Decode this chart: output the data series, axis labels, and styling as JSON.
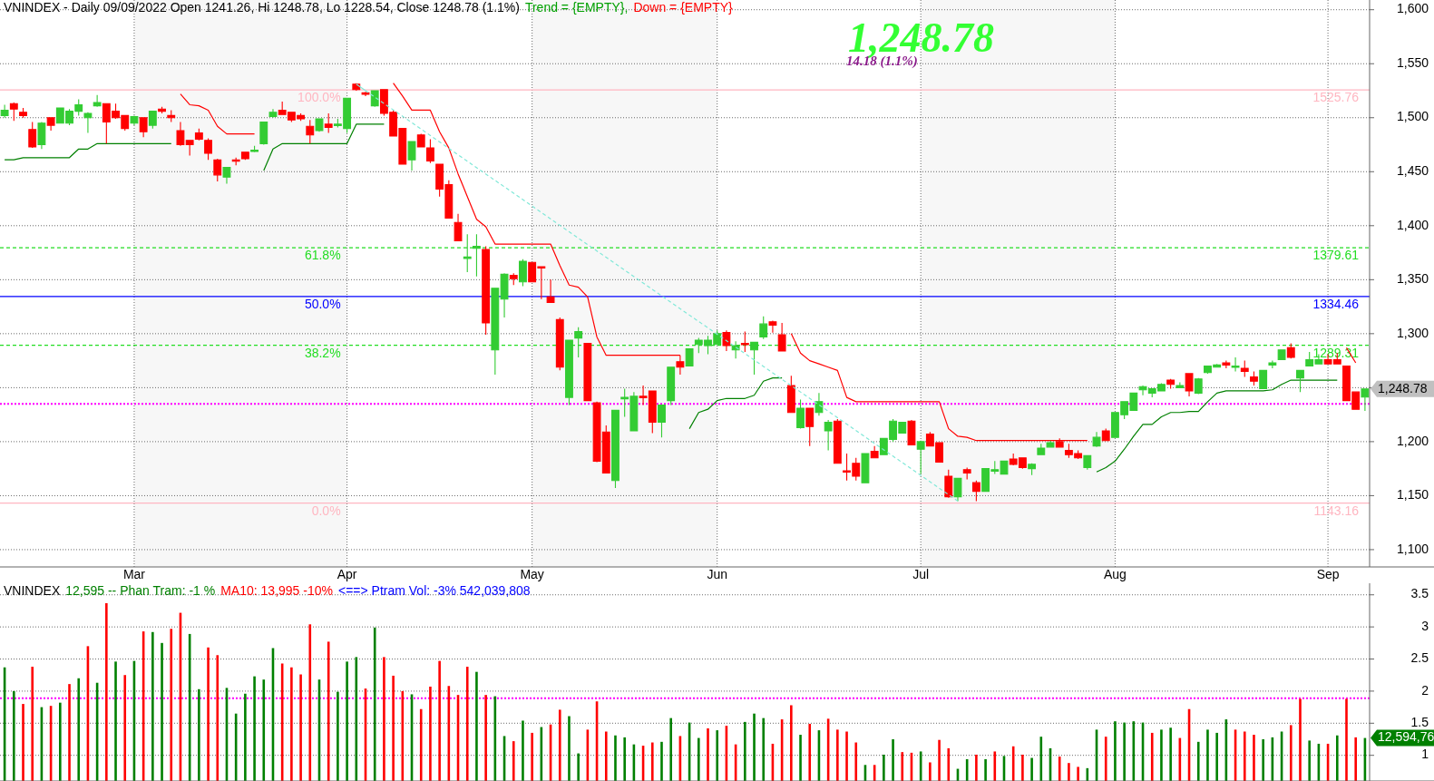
{
  "chart_data": [
    {
      "type": "candlestick",
      "title": "VNINDEX - Daily 09/09/2022 Open 1241.26, Hi 1248.78, Lo 1228.54, Close 1248.78 (1.1%)",
      "categories": [
        null,
        null,
        null,
        null,
        null,
        null,
        null,
        null,
        null,
        null,
        null,
        null,
        null,
        null,
        "Mar",
        null,
        null,
        null,
        null,
        null,
        null,
        null,
        null,
        null,
        null,
        null,
        null,
        null,
        null,
        null,
        null,
        null,
        null,
        null,
        null,
        null,
        null,
        "Apr",
        null,
        null,
        null,
        null,
        null,
        null,
        null,
        null,
        null,
        null,
        null,
        null,
        null,
        null,
        null,
        null,
        null,
        null,
        null,
        "May",
        null,
        null,
        null,
        null,
        null,
        null,
        null,
        null,
        null,
        null,
        null,
        null,
        null,
        null,
        null,
        null,
        null,
        null,
        null,
        "Jun",
        null,
        null,
        null,
        null,
        null,
        null,
        null,
        null,
        null,
        null,
        null,
        null,
        null,
        null,
        null,
        null,
        null,
        null,
        null,
        null,
        null,
        "Jul",
        null,
        null,
        null,
        null,
        null,
        null,
        null,
        null,
        null,
        null,
        null,
        null,
        null,
        null,
        null,
        null,
        null,
        null,
        null,
        null,
        "Aug",
        null,
        null,
        null,
        null,
        null,
        null,
        null,
        null,
        null,
        null,
        null,
        null,
        null,
        null,
        null,
        null,
        null,
        null,
        null,
        null,
        null,
        null,
        "Sep",
        null,
        null,
        null,
        null
      ],
      "ohlc": [
        [
          1502,
          1512,
          1500,
          1507
        ],
        [
          1513,
          1514,
          1497,
          1508
        ],
        [
          1505,
          1509,
          1500,
          1502
        ],
        [
          1489,
          1496,
          1472,
          1473
        ],
        [
          1475,
          1496,
          1471,
          1495
        ],
        [
          1500,
          1500,
          1488,
          1493
        ],
        [
          1495,
          1509,
          1495,
          1509
        ],
        [
          1495,
          1508,
          1493,
          1506
        ],
        [
          1506,
          1517,
          1502,
          1512
        ],
        [
          1500,
          1505,
          1486,
          1504
        ],
        [
          1511,
          1521,
          1510,
          1514
        ],
        [
          1513,
          1513,
          1476,
          1496
        ],
        [
          1506,
          1513,
          1499,
          1500
        ],
        [
          1502,
          1502,
          1488,
          1490
        ],
        [
          1495,
          1502,
          1493,
          1501
        ],
        [
          1500,
          1500,
          1482,
          1487
        ],
        [
          1493,
          1506,
          1490,
          1506
        ],
        [
          1508,
          1510,
          1504,
          1506
        ],
        [
          1502,
          1507,
          1496,
          1500
        ],
        [
          1488,
          1496,
          1474,
          1475
        ],
        [
          1479,
          1479,
          1465,
          1475
        ],
        [
          1486,
          1490,
          1479,
          1480
        ],
        [
          1479,
          1481,
          1461,
          1467
        ],
        [
          1461,
          1462,
          1441,
          1447
        ],
        [
          1445,
          1454,
          1439,
          1454
        ],
        [
          1461,
          1463,
          1456,
          1460
        ],
        [
          1468,
          1468,
          1461,
          1462
        ],
        [
          1469,
          1474,
          1468,
          1470
        ],
        [
          1476,
          1496,
          1475,
          1496
        ],
        [
          1501,
          1508,
          1500,
          1505
        ],
        [
          1507,
          1515,
          1503,
          1503
        ],
        [
          1505,
          1505,
          1496,
          1498
        ],
        [
          1502,
          1504,
          1497,
          1499
        ],
        [
          1492,
          1498,
          1476,
          1484
        ],
        [
          1488,
          1499,
          1487,
          1499
        ],
        [
          1494,
          1504,
          1486,
          1491
        ],
        [
          1493,
          1499,
          1491,
          1494
        ],
        [
          1490,
          1518,
          1486,
          1518
        ],
        [
          1531,
          1532,
          1525,
          1526
        ],
        [
          1523,
          1524,
          1520,
          1522
        ],
        [
          1511,
          1525,
          1510,
          1525
        ],
        [
          1526,
          1526,
          1502,
          1504
        ],
        [
          1505,
          1507,
          1483,
          1483
        ],
        [
          1490,
          1490,
          1457,
          1457
        ],
        [
          1461,
          1478,
          1451,
          1478
        ],
        [
          1484,
          1485,
          1473,
          1473
        ],
        [
          1472,
          1480,
          1458,
          1460
        ],
        [
          1457,
          1457,
          1427,
          1434
        ],
        [
          1438,
          1442,
          1407,
          1407
        ],
        [
          1403,
          1411,
          1386,
          1386
        ],
        [
          1370,
          1392,
          1357,
          1371
        ],
        [
          1379,
          1392,
          1353,
          1381
        ],
        [
          1378,
          1381,
          1299,
          1310
        ],
        [
          1285,
          1342,
          1262,
          1342
        ],
        [
          1332,
          1356,
          1315,
          1355
        ],
        [
          1354,
          1356,
          1345,
          1351
        ],
        [
          1348,
          1369,
          1344,
          1367
        ],
        [
          1366,
          1366,
          1348,
          1348
        ],
        [
          1362,
          1362,
          1332,
          1361
        ],
        [
          1334,
          1350,
          1329,
          1329
        ],
        [
          1313,
          1315,
          1266,
          1269
        ],
        [
          1241,
          1294,
          1234,
          1294
        ],
        [
          1296,
          1306,
          1278,
          1302
        ],
        [
          1291,
          1291,
          1238,
          1238
        ],
        [
          1236,
          1237,
          1181,
          1182
        ],
        [
          1209,
          1215,
          1171,
          1171
        ],
        [
          1164,
          1229,
          1157,
          1229
        ],
        [
          1240,
          1249,
          1223,
          1241
        ],
        [
          1210,
          1246,
          1210,
          1242
        ],
        [
          1242,
          1252,
          1234,
          1241
        ],
        [
          1247,
          1247,
          1208,
          1218
        ],
        [
          1218,
          1234,
          1204,
          1234
        ],
        [
          1238,
          1269,
          1234,
          1269
        ],
        [
          1274,
          1280,
          1262,
          1269
        ],
        [
          1270,
          1286,
          1270,
          1286
        ],
        [
          1290,
          1296,
          1282,
          1294
        ],
        [
          1289,
          1298,
          1281,
          1294
        ],
        [
          1290,
          1303,
          1290,
          1300
        ],
        [
          1301,
          1303,
          1284,
          1289
        ],
        [
          1285,
          1293,
          1277,
          1289
        ],
        [
          1291,
          1302,
          1283,
          1290
        ],
        [
          1285,
          1292,
          1262,
          1292
        ],
        [
          1297,
          1316,
          1295,
          1309
        ],
        [
          1311,
          1312,
          1301,
          1308
        ],
        [
          1299,
          1310,
          1284,
          1284
        ],
        [
          1252,
          1261,
          1227,
          1227
        ],
        [
          1213,
          1239,
          1212,
          1231
        ],
        [
          1231,
          1231,
          1196,
          1214
        ],
        [
          1227,
          1245,
          1224,
          1237
        ],
        [
          1210,
          1220,
          1192,
          1218
        ],
        [
          1219,
          1221,
          1180,
          1180
        ],
        [
          1173,
          1189,
          1164,
          1172
        ],
        [
          1180,
          1185,
          1164,
          1168
        ],
        [
          1162,
          1189,
          1162,
          1189
        ],
        [
          1191,
          1196,
          1185,
          1185
        ],
        [
          1188,
          1203,
          1188,
          1203
        ],
        [
          1202,
          1221,
          1200,
          1219
        ],
        [
          1208,
          1218,
          1208,
          1218
        ],
        [
          1219,
          1220,
          1197,
          1197
        ],
        [
          1193,
          1201,
          1170,
          1200
        ],
        [
          1207,
          1209,
          1196,
          1196
        ],
        [
          1199,
          1199,
          1181,
          1181
        ],
        [
          1168,
          1174,
          1148,
          1149
        ],
        [
          1149,
          1166,
          1145,
          1166
        ],
        [
          1174,
          1176,
          1165,
          1171
        ],
        [
          1162,
          1164,
          1145,
          1154
        ],
        [
          1154,
          1175,
          1154,
          1175
        ],
        [
          1173,
          1182,
          1170,
          1174
        ],
        [
          1170,
          1182,
          1170,
          1182
        ],
        [
          1184,
          1189,
          1178,
          1179
        ],
        [
          1185,
          1185,
          1175,
          1176
        ],
        [
          1175,
          1180,
          1169,
          1179
        ],
        [
          1188,
          1198,
          1188,
          1194
        ],
        [
          1195,
          1201,
          1195,
          1199
        ],
        [
          1200,
          1203,
          1195,
          1195
        ],
        [
          1192,
          1198,
          1185,
          1188
        ],
        [
          1189,
          1192,
          1184,
          1185
        ],
        [
          1176,
          1187,
          1174,
          1187
        ],
        [
          1196,
          1209,
          1195,
          1204
        ],
        [
          1210,
          1212,
          1201,
          1201
        ],
        [
          1204,
          1227,
          1204,
          1227
        ],
        [
          1225,
          1237,
          1221,
          1237
        ],
        [
          1229,
          1245,
          1229,
          1245
        ],
        [
          1248,
          1252,
          1243,
          1251
        ],
        [
          1245,
          1249,
          1241,
          1249
        ],
        [
          1247,
          1254,
          1247,
          1253
        ],
        [
          1257,
          1258,
          1249,
          1253
        ],
        [
          1250,
          1255,
          1250,
          1252
        ],
        [
          1263,
          1263,
          1242,
          1247
        ],
        [
          1245,
          1259,
          1244,
          1258
        ],
        [
          1264,
          1270,
          1263,
          1270
        ],
        [
          1269,
          1272,
          1269,
          1271
        ],
        [
          1273,
          1275,
          1268,
          1271
        ],
        [
          1269,
          1278,
          1265,
          1270
        ],
        [
          1268,
          1275,
          1260,
          1265
        ],
        [
          1260,
          1265,
          1252,
          1256
        ],
        [
          1249,
          1266,
          1249,
          1266
        ],
        [
          1271,
          1275,
          1268,
          1273
        ],
        [
          1276,
          1285,
          1276,
          1285
        ],
        [
          1287,
          1291,
          1277,
          1278
        ],
        [
          1259,
          1266,
          1246,
          1266
        ],
        [
          1270,
          1283,
          1270,
          1276
        ],
        [
          1272,
          1281,
          1272,
          1276
        ],
        [
          1276,
          1281,
          1272,
          1272
        ],
        [
          1276,
          1282,
          1272,
          1272
        ],
        [
          1270,
          1270,
          1238,
          1238
        ],
        [
          1246,
          1246,
          1230,
          1230
        ],
        [
          1241.26,
          1248.78,
          1228.54,
          1248.78
        ]
      ],
      "colors": [
        "#33cc33",
        "#ff0000",
        "#ff0000",
        "#ff0000",
        "#33cc33",
        "#ff0000",
        "#33cc33",
        "#33cc33",
        "#33cc33",
        "#33cc33",
        "#33cc33",
        "#ff0000",
        "#ff0000",
        "#ff0000",
        "#33cc33",
        "#ff0000",
        "#33cc33",
        "#ff0000",
        "#ff0000",
        "#ff0000",
        "#ff0000",
        "#ff0000",
        "#ff0000",
        "#ff0000",
        "#33cc33",
        "#ff0000",
        "#ff0000",
        "#33cc33",
        "#33cc33",
        "#33cc33",
        "#ff0000",
        "#ff0000",
        "#ff0000",
        "#ff0000",
        "#33cc33",
        "#ff0000",
        "#33cc33",
        "#33cc33",
        "#ff0000",
        "#ff0000",
        "#33cc33",
        "#ff0000",
        "#ff0000",
        "#ff0000",
        "#33cc33",
        "#ff0000",
        "#ff0000",
        "#ff0000",
        "#ff0000",
        "#ff0000",
        "#33cc33",
        "#33cc33",
        "#ff0000",
        "#33cc33",
        "#33cc33",
        "#ff0000",
        "#33cc33",
        "#ff0000",
        "#ff0000",
        "#ff0000",
        "#ff0000",
        "#33cc33",
        "#33cc33",
        "#ff0000",
        "#ff0000",
        "#ff0000",
        "#33cc33",
        "#33cc33",
        "#33cc33",
        "#ff0000",
        "#ff0000",
        "#33cc33",
        "#33cc33",
        "#ff0000",
        "#33cc33",
        "#33cc33",
        "#33cc33",
        "#33cc33",
        "#ff0000",
        "#33cc33",
        "#ff0000",
        "#33cc33",
        "#33cc33",
        "#ff0000",
        "#ff0000",
        "#ff0000",
        "#33cc33",
        "#ff0000",
        "#33cc33",
        "#33cc33",
        "#ff0000",
        "#ff0000",
        "#ff0000",
        "#33cc33",
        "#ff0000",
        "#33cc33",
        "#33cc33",
        "#33cc33",
        "#ff0000",
        "#33cc33",
        "#ff0000",
        "#ff0000",
        "#ff0000",
        "#33cc33",
        "#ff0000",
        "#ff0000",
        "#33cc33",
        "#33cc33",
        "#33cc33",
        "#ff0000",
        "#ff0000",
        "#33cc33",
        "#33cc33",
        "#33cc33",
        "#ff0000",
        "#ff0000",
        "#ff0000",
        "#33cc33",
        "#33cc33",
        "#ff0000",
        "#33cc33",
        "#33cc33",
        "#33cc33",
        "#33cc33",
        "#33cc33",
        "#33cc33",
        "#ff0000",
        "#33cc33",
        "#ff0000",
        "#33cc33",
        "#33cc33",
        "#33cc33",
        "#ff0000",
        "#33cc33",
        "#ff0000",
        "#ff0000",
        "#33cc33",
        "#33cc33",
        "#33cc33",
        "#ff0000",
        "#33cc33",
        "#33cc33",
        "#33cc33",
        "#ff0000",
        "#ff0000",
        "#ff0000",
        "#ff0000",
        "#33cc33"
      ],
      "series": [
        {
          "type": "line",
          "color": "#ff0000",
          "values": [
            null,
            null,
            null,
            null,
            null,
            null,
            null,
            null,
            null,
            null,
            null,
            null,
            null,
            null,
            null,
            null,
            null,
            null,
            null,
            1522,
            1512,
            1511,
            1507,
            1492,
            1485,
            1485,
            1485,
            1485,
            null,
            null,
            null,
            null,
            null,
            null,
            null,
            null,
            null,
            null,
            null,
            null,
            null,
            null,
            1532,
            1520,
            1507,
            1507,
            1507,
            1487,
            1472,
            1448,
            1427,
            1406,
            1399,
            1383,
            1383,
            1383,
            1383,
            1383,
            1383,
            1383,
            1363,
            1345,
            1343,
            1334,
            1297,
            1280,
            1280,
            1280,
            1280,
            1280,
            1280,
            1280,
            1280,
            1280,
            null,
            null,
            null,
            null,
            null,
            null,
            null,
            null,
            null,
            null,
            null,
            1300,
            1282,
            1275,
            1272,
            1269,
            1266,
            1241,
            1237,
            1237,
            1237,
            1237,
            1237,
            1237,
            1237,
            1237,
            1237,
            1237,
            1212,
            1205,
            1204,
            1201,
            1201,
            1201,
            1201,
            1201,
            1201,
            1201,
            1201,
            1201,
            1201,
            1201,
            1201,
            1201,
            null,
            null,
            null,
            null,
            null,
            null,
            null,
            null,
            null,
            null,
            null,
            null,
            null,
            null,
            null,
            null,
            null,
            null,
            null,
            null,
            null,
            null,
            null,
            null,
            null,
            null,
            null,
            1287,
            1273,
            null
          ]
        },
        {
          "type": "line",
          "color": "#008000",
          "values": [
            1461,
            1461,
            1463,
            1463,
            1463,
            1463,
            1463,
            1463,
            1471,
            1471,
            1476,
            1476,
            1476,
            1476,
            1476,
            1476,
            1476,
            1476,
            1476,
            null,
            null,
            null,
            null,
            null,
            null,
            null,
            null,
            null,
            1451,
            1471,
            1476,
            1476,
            1476,
            1476,
            1476,
            1476,
            1476,
            1476,
            1494,
            1494,
            1494,
            1494,
            null,
            null,
            null,
            null,
            null,
            null,
            null,
            null,
            null,
            null,
            null,
            null,
            null,
            null,
            null,
            null,
            null,
            null,
            null,
            null,
            null,
            null,
            null,
            null,
            null,
            null,
            null,
            null,
            null,
            null,
            null,
            null,
            1212,
            1227,
            1230,
            1238,
            1240,
            1240,
            1240,
            1243,
            1256,
            1259,
            1259,
            null,
            null,
            null,
            null,
            null,
            null,
            null,
            null,
            null,
            null,
            null,
            null,
            null,
            null,
            null,
            null,
            null,
            null,
            null,
            null,
            null,
            null,
            null,
            null,
            null,
            null,
            null,
            null,
            null,
            null,
            null,
            null,
            null,
            1172,
            1176,
            1182,
            1193,
            1205,
            1216,
            1216,
            1223,
            1227,
            1227,
            1228,
            1228,
            1237,
            1245,
            1247,
            1247,
            1247,
            1247,
            1247,
            1248,
            1253,
            1257,
            1257,
            1257,
            1257,
            1257,
            1257,
            null,
            null,
            null
          ]
        },
        {
          "type": "line",
          "color": "#80e8d8",
          "line_style": "dashed",
          "values": [
            null,
            null,
            null,
            null,
            null,
            null,
            null,
            null,
            null,
            null,
            null,
            null,
            null,
            null,
            null,
            null,
            null,
            null,
            null,
            null,
            null,
            null,
            null,
            null,
            null,
            null,
            null,
            null,
            null,
            null,
            null,
            null,
            null,
            null,
            null,
            null,
            null,
            null,
            1531,
            null,
            null,
            null,
            null,
            null,
            null,
            null,
            null,
            null,
            null,
            null,
            null,
            null,
            null,
            null,
            null,
            null,
            null,
            null,
            null,
            null,
            null,
            null,
            null,
            null,
            null,
            null,
            null,
            null,
            null,
            null,
            null,
            null,
            null,
            null,
            null,
            null,
            null,
            null,
            null,
            null,
            null,
            null,
            null,
            null,
            null,
            null,
            null,
            null,
            null,
            null,
            null,
            null,
            null,
            null,
            null,
            null,
            null,
            null,
            null,
            null,
            null,
            null,
            null,
            1145,
            null,
            null,
            null,
            null,
            null,
            null,
            null,
            null,
            null,
            null,
            null,
            null,
            null,
            null,
            null,
            null,
            null,
            null,
            null,
            null,
            null,
            null,
            null,
            null,
            null,
            null,
            null,
            null,
            null,
            null,
            null,
            null,
            null,
            null,
            null,
            null,
            null,
            null,
            null,
            null,
            null,
            null,
            null,
            null
          ]
        }
      ],
      "ylim": [
        1084,
        1609
      ],
      "yticks": [
        {
          "value": 1100,
          "label": "1,100"
        },
        {
          "value": 1150,
          "label": "1,150"
        },
        {
          "value": 1200,
          "label": "1,200"
        },
        {
          "value": 1250,
          "label": null
        },
        {
          "value": 1300,
          "label": "1,300"
        },
        {
          "value": 1350,
          "label": "1,350"
        },
        {
          "value": 1400,
          "label": "1,400"
        },
        {
          "value": 1450,
          "label": "1,450"
        },
        {
          "value": 1500,
          "label": "1,500"
        },
        {
          "value": 1550,
          "label": "1,550"
        },
        {
          "value": 1600,
          "label": "1,600"
        }
      ],
      "grid": true,
      "bands": [
        {
          "axis": "x",
          "from": "Mar",
          "to": "Apr",
          "color": "#f7f7f7"
        },
        {
          "axis": "x",
          "from": "May",
          "to": "Jun",
          "color": "#f7f7f7"
        },
        {
          "axis": "x",
          "from": "Jul",
          "to": "Aug",
          "color": "#f7f7f7"
        }
      ],
      "ref_lines": [
        {
          "axis": "y",
          "value": 1525.76,
          "label": "1525.76",
          "color": "#ffb6c1",
          "line_style": "solid"
        },
        {
          "axis": "y",
          "value": 1379.61,
          "label": "1379.61",
          "color": "#22dd22",
          "line_style": "dashed"
        },
        {
          "axis": "y",
          "value": 1334.46,
          "label": "1334.46",
          "color": "#0000ff",
          "line_style": "solid"
        },
        {
          "axis": "y",
          "value": 1289.31,
          "label": "1289.31",
          "color": "#22dd22",
          "line_style": "dashed"
        },
        {
          "axis": "y",
          "value": 1143.16,
          "label": "1143.16",
          "color": "#ffb6c1",
          "line_style": "solid"
        },
        {
          "axis": "y",
          "value": 1235,
          "color": "#ff00ff",
          "line_style": "dotted"
        }
      ],
      "annotations": [
        "Trend = {EMPTY},",
        "Down = {EMPTY}",
        "1,248.78",
        "14.18  (1.1%)",
        "1,248.78",
        {
          "text": "100.0%",
          "x": "Apr",
          "y": 1525.76
        },
        {
          "text": "61.8%",
          "x": "Apr",
          "y": 1379.61
        },
        {
          "text": "50.0%",
          "x": "Apr",
          "y": 1334.46
        },
        {
          "text": "38.2%",
          "x": "Apr",
          "y": 1289.31
        },
        {
          "text": "0.0%",
          "x": "Apr",
          "y": 1143.16
        }
      ]
    },
    {
      "type": "bar",
      "title": "VNINDEX",
      "categories": [
        null,
        null,
        null,
        null,
        null,
        null,
        null,
        null,
        null,
        null,
        null,
        null,
        null,
        null,
        null,
        null,
        null,
        null,
        null,
        null,
        null,
        null,
        null,
        null,
        null,
        null,
        null,
        null,
        null,
        null,
        null,
        null,
        null,
        null,
        null,
        null,
        null,
        null,
        null,
        null,
        null,
        null,
        null,
        null,
        null,
        null,
        null,
        null,
        null,
        null,
        null,
        null,
        null,
        null,
        null,
        null,
        null,
        null,
        null,
        null,
        null,
        null,
        null,
        null,
        null,
        null,
        null,
        null,
        null,
        null,
        null,
        null,
        null,
        null,
        null,
        null,
        null,
        null,
        null,
        null,
        null,
        null,
        null,
        null,
        null,
        null,
        null,
        null,
        null,
        null,
        null,
        null,
        null,
        null,
        null,
        null,
        null,
        null,
        null,
        null,
        null,
        null,
        null,
        null,
        null,
        null,
        null,
        null,
        null,
        null,
        null,
        null,
        null,
        null,
        null,
        null,
        null,
        null,
        null,
        null,
        null,
        null,
        null,
        null,
        null,
        null,
        null,
        null,
        null,
        null,
        null,
        null,
        null,
        null,
        null,
        null,
        null,
        null,
        null,
        null,
        null,
        null,
        null,
        null,
        null,
        null,
        null,
        null
      ],
      "values": [
        2.37,
        2.0,
        1.8,
        2.38,
        1.75,
        1.77,
        1.82,
        2.11,
        2.2,
        2.7,
        2.13,
        3.37,
        2.46,
        2.25,
        2.47,
        2.93,
        2.92,
        2.75,
        2.97,
        3.22,
        2.89,
        2.03,
        2.68,
        2.56,
        2.05,
        1.65,
        1.96,
        2.23,
        2.18,
        2.67,
        2.43,
        2.37,
        2.26,
        3.04,
        2.18,
        2.77,
        1.99,
        2.46,
        2.53,
        2.04,
        2.99,
        2.53,
        2.24,
        2.0,
        1.95,
        1.72,
        2.07,
        2.47,
        2.08,
        1.94,
        2.38,
        2.3,
        1.94,
        1.92,
        1.3,
        1.22,
        1.54,
        1.35,
        1.44,
        1.48,
        1.71,
        1.61,
        1.03,
        1.4,
        1.84,
        1.37,
        1.31,
        1.28,
        1.17,
        1.15,
        1.2,
        1.21,
        1.58,
        1.3,
        1.51,
        1.27,
        1.42,
        1.39,
        1.46,
        1.17,
        1.52,
        1.65,
        1.58,
        1.18,
        1.56,
        1.78,
        1.32,
        1.49,
        1.39,
        1.57,
        1.4,
        1.37,
        1.2,
        0.85,
        0.85,
        1.01,
        1.25,
        1.05,
        1.04,
        1.06,
        0.89,
        1.24,
        1.11,
        0.79,
        0.94,
        1.01,
        0.94,
        1.06,
        0.99,
        1.14,
        1.01,
        0.96,
        1.29,
        1.11,
        0.98,
        0.88,
        0.82,
        0.8,
        1.4,
        1.29,
        1.53,
        1.51,
        1.53,
        1.51,
        1.35,
        1.4,
        1.43,
        1.27,
        1.72,
        1.21,
        1.4,
        1.35,
        1.56,
        1.4,
        1.37,
        1.32,
        1.25,
        1.28,
        1.37,
        1.47,
        1.88,
        1.23,
        1.18,
        1.18,
        1.31,
        1.88,
        1.28,
        1.27
      ],
      "colors": [
        "#008000",
        "#008000",
        "#ff0000",
        "#ff0000",
        "#008000",
        "#ff0000",
        "#008000",
        "#ff0000",
        "#008000",
        "#ff0000",
        "#008000",
        "#ff0000",
        "#008000",
        "#ff0000",
        "#008000",
        "#ff0000",
        "#008000",
        "#008000",
        "#ff0000",
        "#ff0000",
        "#008000",
        "#008000",
        "#ff0000",
        "#ff0000",
        "#008000",
        "#008000",
        "#008000",
        "#008000",
        "#008000",
        "#008000",
        "#ff0000",
        "#ff0000",
        "#ff0000",
        "#ff0000",
        "#008000",
        "#ff0000",
        "#008000",
        "#008000",
        "#008000",
        "#ff0000",
        "#008000",
        "#ff0000",
        "#ff0000",
        "#ff0000",
        "#008000",
        "#ff0000",
        "#ff0000",
        "#ff0000",
        "#ff0000",
        "#ff0000",
        "#ff0000",
        "#008000",
        "#ff0000",
        "#008000",
        "#008000",
        "#ff0000",
        "#008000",
        "#ff0000",
        "#008000",
        "#ff0000",
        "#ff0000",
        "#008000",
        "#008000",
        "#ff0000",
        "#ff0000",
        "#ff0000",
        "#008000",
        "#008000",
        "#008000",
        "#ff0000",
        "#ff0000",
        "#008000",
        "#008000",
        "#ff0000",
        "#008000",
        "#008000",
        "#ff0000",
        "#008000",
        "#ff0000",
        "#ff0000",
        "#008000",
        "#008000",
        "#008000",
        "#ff0000",
        "#ff0000",
        "#ff0000",
        "#008000",
        "#ff0000",
        "#008000",
        "#ff0000",
        "#ff0000",
        "#ff0000",
        "#ff0000",
        "#008000",
        "#ff0000",
        "#008000",
        "#008000",
        "#ff0000",
        "#ff0000",
        "#008000",
        "#ff0000",
        "#ff0000",
        "#ff0000",
        "#008000",
        "#008000",
        "#ff0000",
        "#008000",
        "#ff0000",
        "#008000",
        "#ff0000",
        "#ff0000",
        "#008000",
        "#008000",
        "#008000",
        "#ff0000",
        "#ff0000",
        "#ff0000",
        "#008000",
        "#008000",
        "#ff0000",
        "#008000",
        "#008000",
        "#008000",
        "#008000",
        "#ff0000",
        "#008000",
        "#008000",
        "#ff0000",
        "#ff0000",
        "#008000",
        "#008000",
        "#008000",
        "#008000",
        "#ff0000",
        "#ff0000",
        "#ff0000",
        "#008000",
        "#008000",
        "#008000",
        "#ff0000",
        "#ff0000",
        "#008000",
        "#008000",
        "#ff0000",
        "#008000",
        "#ff0000",
        "#ff0000",
        "#008000"
      ],
      "ylim": [
        0.6,
        3.68
      ],
      "yticks": [
        1,
        1.5,
        2,
        2.5,
        3,
        3.5
      ],
      "grid": "y",
      "tick_labels": "y",
      "ref_lines": [
        {
          "axis": "y",
          "value": 1.89,
          "color": "#ff00ff",
          "line_style": "dotted"
        }
      ],
      "annotations": [
        "12,595 -- Phan Tram:  -1 %",
        "MA10:  13,995  -10%",
        "<==> Ptram Vol:  -3%  542,039,808",
        "12,594,76"
      ]
    }
  ]
}
